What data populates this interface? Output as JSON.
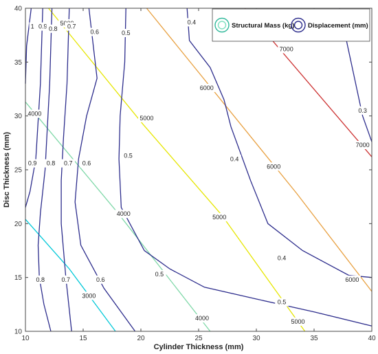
{
  "chart_data": {
    "type": "contour",
    "title": "",
    "xlabel": "Cylinder Thickness (mm)",
    "ylabel": "Disc Thickness (mm)",
    "xlim": [
      10,
      40
    ],
    "ylim": [
      10,
      40
    ],
    "xticks": [
      10,
      15,
      20,
      25,
      30,
      35,
      40
    ],
    "yticks": [
      10,
      15,
      20,
      25,
      30,
      35,
      40
    ],
    "grid": false,
    "legend": {
      "position": "top-right",
      "entries": [
        {
          "name": "Structural Mass (kg)",
          "color": "#2fb89a",
          "inner_color": "#7fe0c0"
        },
        {
          "name": "Displacement (mm)",
          "color": "#2c2c8c",
          "inner_color": "#2c2c8c"
        }
      ]
    },
    "series": [
      {
        "name": "Structural Mass (kg)",
        "levels": [
          {
            "label": "3000",
            "color": "#00c8d8",
            "points": [
              [
                10,
                20.4
              ],
              [
                13.8,
                15.8
              ],
              [
                17.8,
                10
              ]
            ],
            "labels_at": [
              [
                15.5,
                13.3
              ]
            ]
          },
          {
            "label": "4000",
            "color": "#7fd8a8",
            "points": [
              [
                10,
                31.3
              ],
              [
                18,
                21
              ],
              [
                26,
                10
              ]
            ],
            "labels_at": [
              [
                10.8,
                30.2
              ],
              [
                18.5,
                20.9
              ],
              [
                25.3,
                11.2
              ]
            ]
          },
          {
            "label": "5000",
            "color": "#e6e600",
            "points": [
              [
                12,
                40
              ],
              [
                20.2,
                29.2
              ],
              [
                27,
                20.8
              ],
              [
                34.2,
                10
              ]
            ],
            "labels_at": [
              [
                13.6,
                38.6
              ],
              [
                20.5,
                29.8
              ],
              [
                26.8,
                20.6
              ],
              [
                33.6,
                10.9
              ]
            ]
          },
          {
            "label": "6000",
            "color": "#e8a040",
            "points": [
              [
                20.5,
                40
              ],
              [
                33.5,
                22.8
              ],
              [
                40,
                13.7
              ]
            ],
            "labels_at": [
              [
                25.7,
                32.6
              ],
              [
                31.5,
                25.3
              ],
              [
                38.3,
                14.8
              ]
            ]
          },
          {
            "label": "7000",
            "color": "#cc3030",
            "points": [
              [
                29,
                40
              ],
              [
                40,
                26.2
              ]
            ],
            "labels_at": [
              [
                32.6,
                36.2
              ],
              [
                39.2,
                27.3
              ]
            ]
          }
        ]
      },
      {
        "name": "Displacement (mm)",
        "levels": [
          {
            "label": "1",
            "points": [
              [
                10.5,
                40
              ],
              [
                10.1,
                36.5
              ],
              [
                10,
                33
              ]
            ],
            "labels_at": [
              [
                10.6,
                38.3
              ]
            ]
          },
          {
            "label": "0.9",
            "points": [
              [
                11.5,
                40
              ],
              [
                11.3,
                33
              ],
              [
                10.9,
                26
              ],
              [
                10.4,
                23
              ],
              [
                10,
                21.5
              ]
            ],
            "labels_at": [
              [
                11.5,
                38.3
              ],
              [
                10.6,
                25.6
              ]
            ]
          },
          {
            "label": "0.8",
            "points": [
              [
                12.3,
                40
              ],
              [
                12.1,
                33
              ],
              [
                11.7,
                25
              ],
              [
                11.3,
                21
              ],
              [
                11.1,
                18
              ],
              [
                11.2,
                15
              ],
              [
                11.6,
                12.5
              ],
              [
                12.2,
                10
              ]
            ],
            "labels_at": [
              [
                12.4,
                38.1
              ],
              [
                12.2,
                25.6
              ],
              [
                11.3,
                14.8
              ]
            ]
          },
          {
            "label": "0.7",
            "points": [
              [
                13.8,
                40
              ],
              [
                13.6,
                33
              ],
              [
                13.3,
                28
              ],
              [
                13.1,
                24
              ],
              [
                13.1,
                20
              ],
              [
                13.5,
                15
              ],
              [
                14,
                10
              ]
            ],
            "labels_at": [
              [
                14,
                38.3
              ],
              [
                13.7,
                25.6
              ],
              [
                13.5,
                14.8
              ]
            ]
          },
          {
            "label": "0.6",
            "points": [
              [
                15.5,
                40
              ],
              [
                16.2,
                33.5
              ],
              [
                15.3,
                30
              ],
              [
                14.6,
                26
              ],
              [
                14.3,
                22
              ],
              [
                14.8,
                18
              ],
              [
                16.8,
                14
              ],
              [
                19.5,
                10
              ]
            ],
            "labels_at": [
              [
                16,
                37.8
              ],
              [
                15.3,
                25.6
              ],
              [
                16.5,
                14.8
              ]
            ]
          },
          {
            "label": "0.5",
            "points": [
              [
                18.7,
                40
              ],
              [
                18.6,
                35
              ],
              [
                18.2,
                30
              ],
              [
                18.1,
                26
              ],
              [
                18.3,
                21.5
              ],
              [
                20.3,
                17.5
              ],
              [
                22.5,
                15.8
              ],
              [
                25.5,
                14.1
              ],
              [
                30,
                13
              ],
              [
                35,
                11.8
              ],
              [
                40,
                10.5
              ]
            ],
            "labels_at": [
              [
                18.7,
                37.7
              ],
              [
                18.9,
                26.3
              ],
              [
                21.6,
                15.3
              ],
              [
                32.2,
                12.7
              ]
            ]
          },
          {
            "label": "0.4",
            "points": [
              [
                24,
                40
              ],
              [
                24.2,
                37
              ],
              [
                26,
                34.5
              ],
              [
                27.2,
                31.5
              ],
              [
                27.8,
                29
              ],
              [
                29.5,
                24
              ],
              [
                31,
                20
              ],
              [
                34,
                17.5
              ],
              [
                38,
                15.2
              ],
              [
                40,
                15
              ]
            ],
            "labels_at": [
              [
                24.4,
                38.7
              ],
              [
                28.1,
                26
              ],
              [
                32.2,
                16.8
              ]
            ]
          },
          {
            "label": "0.3",
            "points": [
              [
                37.2,
                40
              ],
              [
                38.2,
                35
              ],
              [
                39.2,
                30
              ],
              [
                40,
                27.6
              ]
            ],
            "labels_at": [
              [
                39.2,
                30.5
              ]
            ]
          }
        ]
      }
    ]
  }
}
